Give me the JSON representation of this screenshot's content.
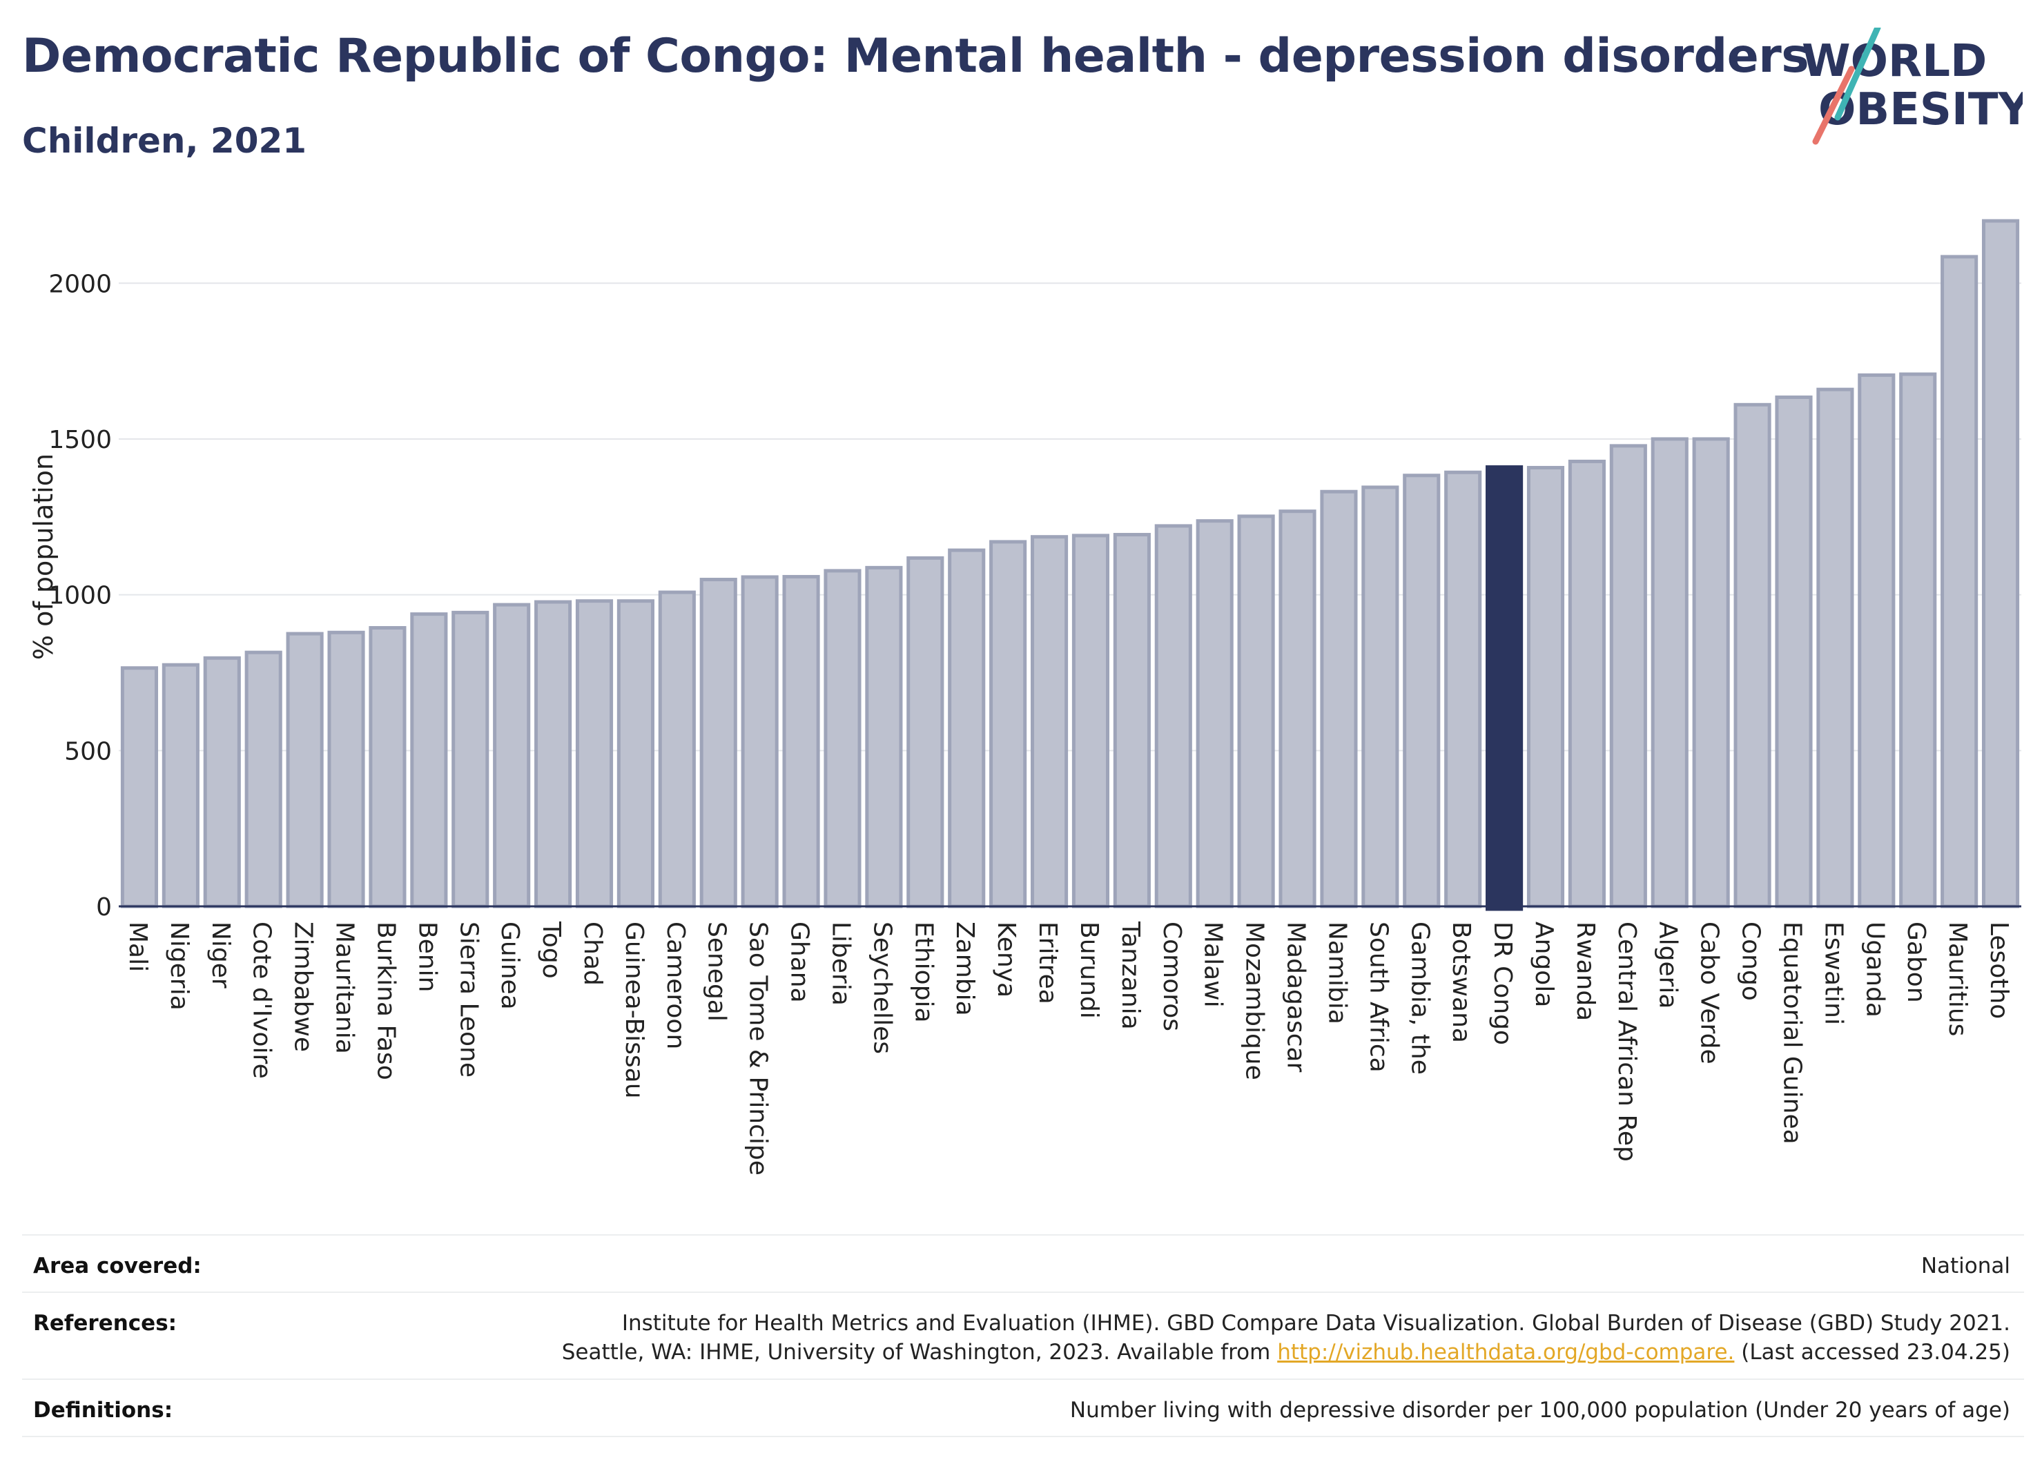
{
  "title": "Democratic Republic of Congo: Mental health - depression disorders",
  "subtitle": "Children, 2021",
  "logo": {
    "line1": "WORLD",
    "line2": "OBESITY"
  },
  "colors": {
    "highlight": "#2b355e",
    "bar": "#bdc1cf",
    "bar_stroke": "#9ea4b9",
    "accent_teal": "#3fb4b4",
    "accent_coral": "#e8746a",
    "link": "#e3a726"
  },
  "chart_data": {
    "type": "bar",
    "ylabel": "% of population",
    "xlabel": "",
    "ylim": [
      0,
      2200
    ],
    "yticks": [
      0,
      500,
      1000,
      1500,
      2000
    ],
    "grid": true,
    "highlight_category": "DR Congo",
    "categories": [
      "Mali",
      "Nigeria",
      "Niger",
      "Cote d'Ivoire",
      "Zimbabwe",
      "Mauritania",
      "Burkina Faso",
      "Benin",
      "Sierra Leone",
      "Guinea",
      "Togo",
      "Chad",
      "Guinea-Bissau",
      "Cameroon",
      "Senegal",
      "Sao Tome & Principe",
      "Ghana",
      "Liberia",
      "Seychelles",
      "Ethiopia",
      "Zambia",
      "Kenya",
      "Eritrea",
      "Burundi",
      "Tanzania",
      "Comoros",
      "Malawi",
      "Mozambique",
      "Madagascar",
      "Namibia",
      "South Africa",
      "Gambia, the",
      "Botswana",
      "DR Congo",
      "Angola",
      "Rwanda",
      "Central African Rep",
      "Algeria",
      "Cabo Verde",
      "Congo",
      "Equatorial Guinea",
      "Eswatini",
      "Uganda",
      "Gabon",
      "Mauritius",
      "Lesotho"
    ],
    "values": [
      765,
      775,
      797,
      815,
      875,
      879,
      894,
      938,
      943,
      968,
      977,
      980,
      980,
      1008,
      1049,
      1057,
      1058,
      1077,
      1087,
      1118,
      1143,
      1170,
      1186,
      1190,
      1193,
      1221,
      1237,
      1252,
      1268,
      1331,
      1345,
      1383,
      1393,
      1410,
      1408,
      1428,
      1478,
      1500,
      1500,
      1610,
      1634,
      1659,
      1705,
      1708,
      2085,
      2200
    ]
  },
  "info": {
    "area_label": "Area covered:",
    "area_value": "National",
    "references_label": "References:",
    "references_line1": "Institute for Health Metrics and Evaluation (IHME). GBD Compare Data Visualization. Global Burden of Disease (GBD) Study 2021.",
    "references_line2_pre": "Seattle, WA: IHME, University of Washington, 2023. Available from ",
    "references_link": "http://vizhub.healthdata.org/gbd-compare.",
    "references_line2_post": " (Last accessed 23.04.25)",
    "definitions_label": "Definitions:",
    "definitions_value": "Number living with depressive disorder per 100,000 population (Under 20 years of age)"
  }
}
